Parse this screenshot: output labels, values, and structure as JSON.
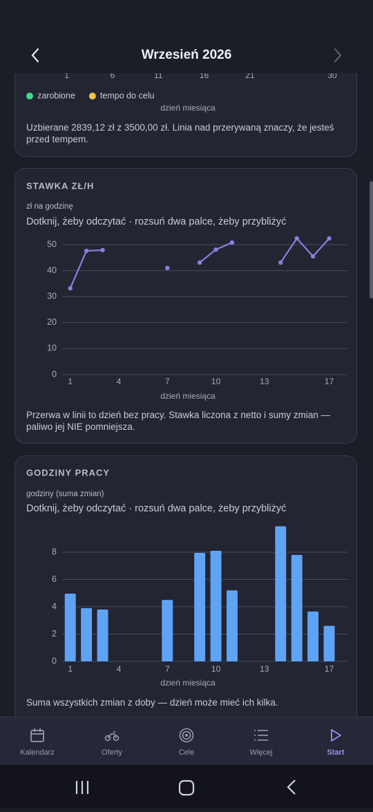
{
  "header": {
    "title": "Wrzesień 2026"
  },
  "chart_data": [
    {
      "type": "line",
      "xlim": [
        0.5,
        30.6
      ],
      "xticks": [
        1,
        6,
        11,
        16,
        21,
        30
      ],
      "series": [
        {
          "name": "zarobione",
          "color": "#3ddc84"
        },
        {
          "name": "tempo do celu",
          "color": "#f5c542"
        }
      ],
      "xlabel": "dzień miesiąca",
      "caption": "Uzbierane 2839,12 zł z 3500,00 zł. Linia nad przerywaną znaczy, że jesteś przed tempem."
    },
    {
      "type": "line",
      "title": "STAWKA ZŁ/H",
      "ylabel": "zł na godzinę",
      "hint": "Dotknij, żeby odczytać · rozsuń dwa palce, żeby przybliżyć",
      "x": [
        1,
        2,
        3,
        4,
        5,
        6,
        7,
        8,
        9,
        10,
        11,
        12,
        13,
        14,
        15,
        16,
        17
      ],
      "values": [
        33.2,
        47.6,
        47.9,
        null,
        null,
        null,
        41.0,
        null,
        43.1,
        48.1,
        50.8,
        null,
        null,
        43.1,
        52.4,
        45.5,
        52.4
      ],
      "color": "#8b7fe0",
      "xlim": [
        0.5,
        18
      ],
      "xticks": [
        1,
        4,
        7,
        10,
        13,
        17
      ],
      "ylim": [
        0,
        55
      ],
      "yticks": [
        0,
        10,
        20,
        30,
        40,
        50
      ],
      "grid": true,
      "xlabel": "dzień miesiąca",
      "caption": "Przerwa w linii to dzień bez pracy. Stawka liczona z netto i sumy zmian — paliwo jej NIE pomniejsza."
    },
    {
      "type": "bar",
      "title": "GODZINY PRACY",
      "ylabel": "godziny (suma zmian)",
      "hint": "Dotknij, żeby odczytać · rozsuń dwa palce, żeby przybliżyć",
      "x": [
        1,
        2,
        3,
        7,
        9,
        10,
        11,
        14,
        15,
        16,
        17
      ],
      "values": [
        4.96,
        3.9,
        3.8,
        4.5,
        7.95,
        8.1,
        5.2,
        9.9,
        7.8,
        3.65,
        2.6
      ],
      "color": "#5ea3f5",
      "xlim": [
        0.5,
        18
      ],
      "xticks": [
        1,
        4,
        7,
        10,
        13,
        17
      ],
      "ylim": [
        0,
        10
      ],
      "yticks": [
        0,
        2,
        4,
        6,
        8
      ],
      "grid": true,
      "xlabel": "dzień miesiąca",
      "caption": "Suma wszystkich zmian z doby — dzień może mieć ich kilka."
    }
  ],
  "nav": {
    "items": [
      "Kalendarz",
      "Oferty",
      "Cele",
      "Więcej",
      "Start"
    ]
  }
}
